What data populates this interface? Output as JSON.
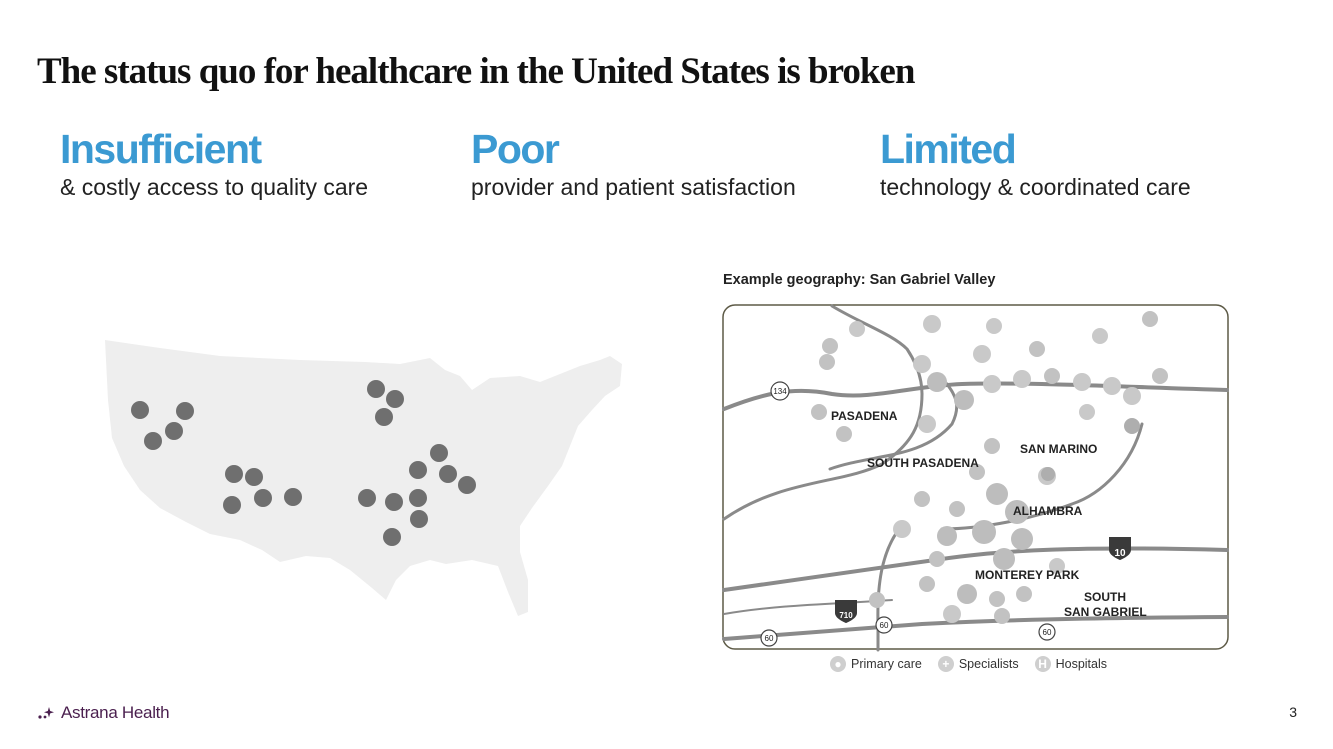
{
  "slide": {
    "title": "The status quo for healthcare in the United States is broken",
    "page_number": "3"
  },
  "pillars": [
    {
      "heading": "Insufficient",
      "subtext": "& costly access to quality care"
    },
    {
      "heading": "Poor",
      "subtext": "provider and patient satisfaction"
    },
    {
      "heading": "Limited",
      "subtext": "technology & coordinated care"
    }
  ],
  "geo": {
    "title": "Example geography: San Gabriel Valley",
    "city_labels": [
      "PASADENA",
      "SAN MARINO",
      "SOUTH PASADENA",
      "ALHAMBRA",
      "MONTEREY PARK",
      "SOUTH",
      "SAN GABRIEL"
    ],
    "road_shields": [
      "134",
      "10",
      "710",
      "60",
      "60",
      "60"
    ],
    "legend": [
      "Primary care",
      "Specialists",
      "Hospitals"
    ],
    "hospital_glyph": "H",
    "specialist_glyph": "+"
  },
  "logo": {
    "text": "Astrana Health"
  },
  "colors": {
    "accent": "#3b9ad2",
    "brand": "#4a1f4e",
    "dot": "#6f6f6f",
    "map_fill": "#eeeeee"
  }
}
